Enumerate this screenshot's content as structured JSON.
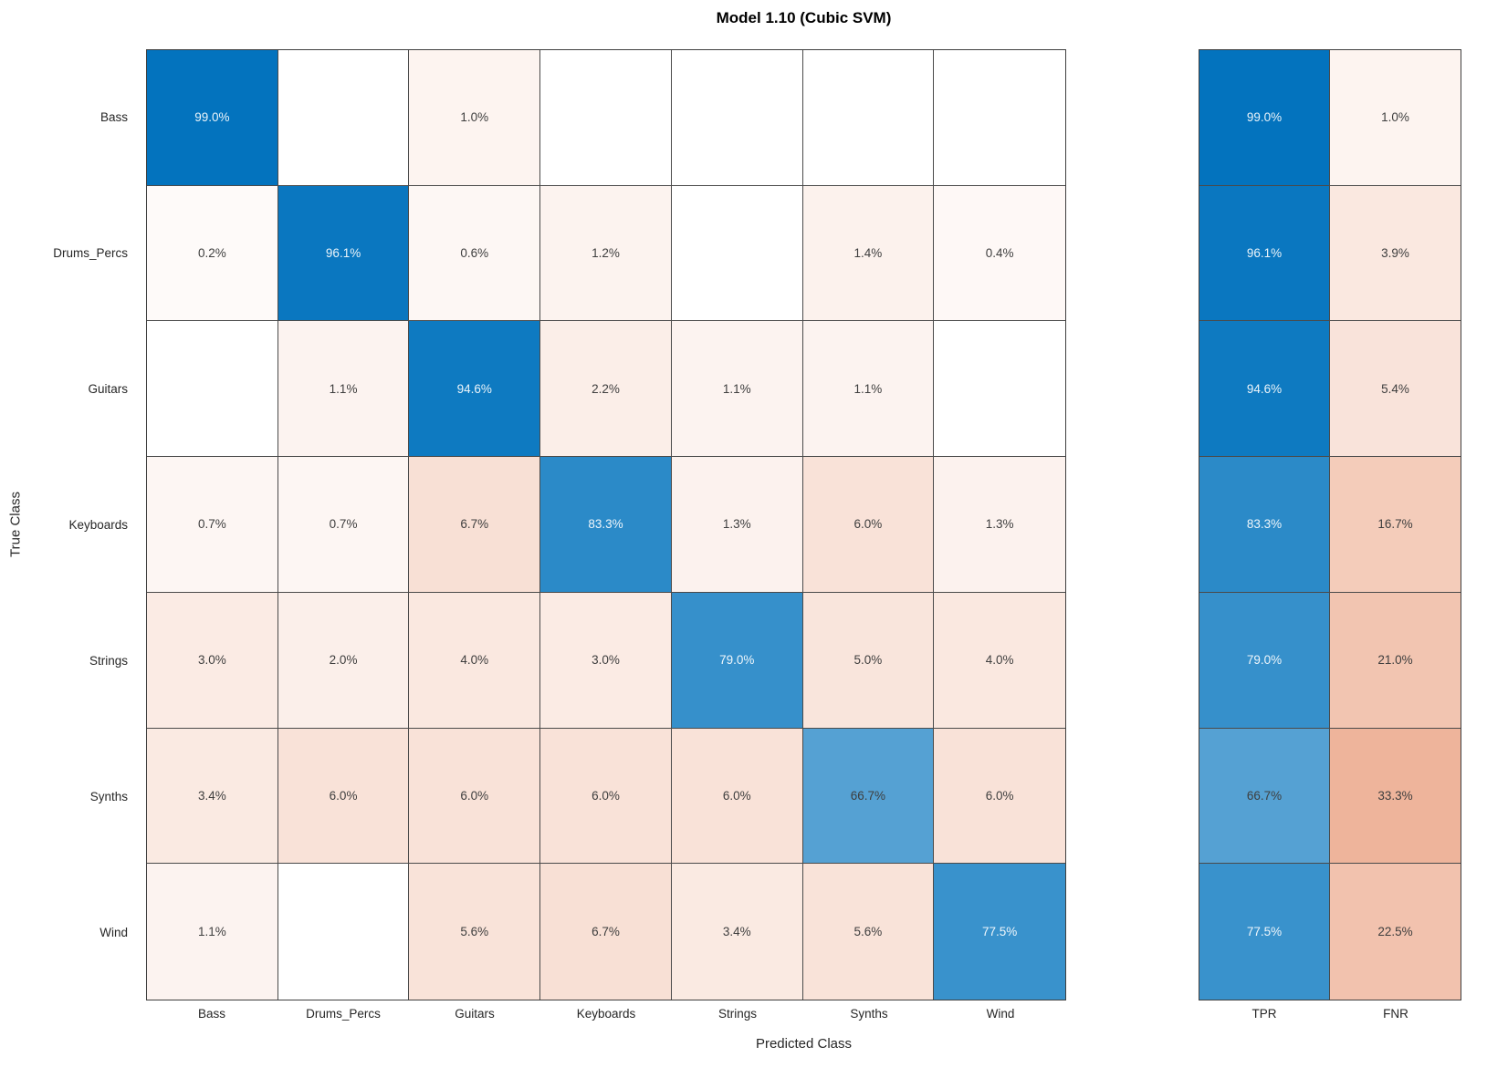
{
  "title": "Model 1.10 (Cubic SVM)",
  "axes": {
    "x_label": "Predicted Class",
    "y_label": "True Class"
  },
  "chart_data": {
    "type": "heatmap",
    "subtype": "confusion-matrix-with-row-summary",
    "title": "Model 1.10 (Cubic SVM)",
    "xlabel": "Predicted Class",
    "ylabel": "True Class",
    "unit": "%",
    "categories": [
      "Bass",
      "Drums_Percs",
      "Guitars",
      "Keyboards",
      "Strings",
      "Synths",
      "Wind"
    ],
    "matrix_row_normalized_percent": [
      [
        99.0,
        null,
        1.0,
        null,
        null,
        null,
        null
      ],
      [
        0.2,
        96.1,
        0.6,
        1.2,
        null,
        1.4,
        0.4
      ],
      [
        null,
        1.1,
        94.6,
        2.2,
        1.1,
        1.1,
        null
      ],
      [
        0.7,
        0.7,
        6.7,
        83.3,
        1.3,
        6.0,
        1.3
      ],
      [
        3.0,
        2.0,
        4.0,
        3.0,
        79.0,
        5.0,
        4.0
      ],
      [
        3.4,
        6.0,
        6.0,
        6.0,
        6.0,
        66.7,
        6.0
      ],
      [
        1.1,
        null,
        5.6,
        6.7,
        3.4,
        5.6,
        77.5
      ]
    ],
    "summary_columns": [
      "TPR",
      "FNR"
    ],
    "series": [
      {
        "name": "TPR",
        "values": [
          99.0,
          96.1,
          94.6,
          83.3,
          79.0,
          66.7,
          77.5
        ]
      },
      {
        "name": "FNR",
        "values": [
          1.0,
          3.9,
          5.4,
          16.7,
          21.0,
          33.3,
          22.5
        ]
      }
    ],
    "legend": "none",
    "grid": "on",
    "colors": {
      "diagonal_base": "#0072BD",
      "off_diagonal_base": "#D95319",
      "empty_cell": "#FFFFFF",
      "grid_line": "#4A4A4A",
      "outer_border": "#3F3F3F",
      "text_dark": "#3E3E3E",
      "text_light": "#FFFFFF",
      "tick_text": "#262626",
      "background": "#FFFFFF"
    }
  }
}
